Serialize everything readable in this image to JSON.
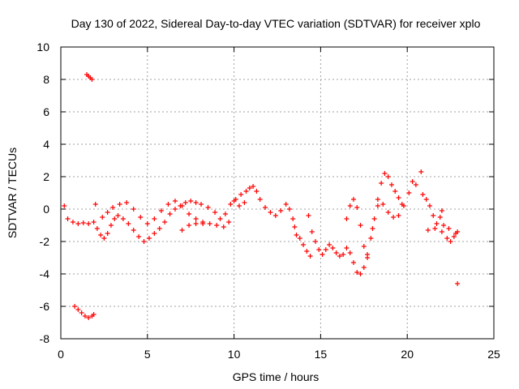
{
  "chart_data": {
    "type": "scatter",
    "title": "Day 130 of 2022, Sidereal Day-to-day VTEC variation (SDTVAR) for receiver xplo",
    "xlabel": "GPS time / hours",
    "ylabel": "SDTVAR / TECUs",
    "xlim": [
      0,
      25
    ],
    "ylim": [
      -8,
      10
    ],
    "xticks": [
      0,
      5,
      10,
      15,
      20,
      25
    ],
    "yticks": [
      -8,
      -6,
      -4,
      -2,
      0,
      2,
      4,
      6,
      8,
      10
    ],
    "grid": true,
    "marker": "plus",
    "series": [
      {
        "name": "SDTVAR",
        "color": "#ff0000",
        "points": [
          [
            0.2,
            0.2
          ],
          [
            0.4,
            -0.6
          ],
          [
            0.7,
            -0.8
          ],
          [
            1.0,
            -0.9
          ],
          [
            1.3,
            -0.85
          ],
          [
            1.6,
            -0.9
          ],
          [
            1.9,
            -0.8
          ],
          [
            1.5,
            8.3
          ],
          [
            1.6,
            8.2
          ],
          [
            1.7,
            8.1
          ],
          [
            1.8,
            8.0
          ],
          [
            0.8,
            -6.0
          ],
          [
            1.0,
            -6.2
          ],
          [
            1.2,
            -6.4
          ],
          [
            1.4,
            -6.6
          ],
          [
            1.6,
            -6.7
          ],
          [
            1.8,
            -6.6
          ],
          [
            1.9,
            -6.5
          ],
          [
            2.0,
            0.3
          ],
          [
            2.1,
            -1.2
          ],
          [
            2.3,
            -1.6
          ],
          [
            2.5,
            -1.8
          ],
          [
            2.7,
            -1.5
          ],
          [
            2.9,
            -1.0
          ],
          [
            3.1,
            -0.6
          ],
          [
            3.3,
            -0.4
          ],
          [
            3.6,
            -0.6
          ],
          [
            3.9,
            -0.9
          ],
          [
            4.2,
            -1.3
          ],
          [
            4.5,
            -1.7
          ],
          [
            4.8,
            -2.0
          ],
          [
            5.1,
            -1.8
          ],
          [
            5.4,
            -1.5
          ],
          [
            5.7,
            -1.2
          ],
          [
            6.0,
            -0.8
          ],
          [
            6.3,
            -0.3
          ],
          [
            6.6,
            0.0
          ],
          [
            6.9,
            0.2
          ],
          [
            7.2,
            0.4
          ],
          [
            7.5,
            0.5
          ],
          [
            7.8,
            0.4
          ],
          [
            8.1,
            0.3
          ],
          [
            2.4,
            -0.5
          ],
          [
            2.7,
            -0.2
          ],
          [
            3.0,
            0.1
          ],
          [
            3.4,
            0.3
          ],
          [
            3.8,
            0.4
          ],
          [
            4.2,
            0.0
          ],
          [
            4.6,
            -0.5
          ],
          [
            5.0,
            -0.9
          ],
          [
            5.4,
            -0.6
          ],
          [
            5.8,
            -0.1
          ],
          [
            6.2,
            0.3
          ],
          [
            6.6,
            0.5
          ],
          [
            7.0,
            0.2
          ],
          [
            7.4,
            -0.3
          ],
          [
            7.8,
            -0.6
          ],
          [
            8.2,
            -0.9
          ],
          [
            7.0,
            -1.3
          ],
          [
            7.4,
            -1.0
          ],
          [
            7.8,
            -0.9
          ],
          [
            8.2,
            -0.8
          ],
          [
            8.6,
            -0.9
          ],
          [
            9.0,
            -1.0
          ],
          [
            9.4,
            -1.1
          ],
          [
            9.7,
            -0.8
          ],
          [
            8.5,
            0.1
          ],
          [
            8.9,
            -0.2
          ],
          [
            9.2,
            -0.6
          ],
          [
            9.5,
            -0.3
          ],
          [
            9.8,
            0.3
          ],
          [
            10.1,
            0.6
          ],
          [
            10.4,
            0.9
          ],
          [
            10.7,
            1.1
          ],
          [
            10.0,
            0.5
          ],
          [
            10.3,
            0.2
          ],
          [
            10.6,
            0.4
          ],
          [
            10.9,
            1.3
          ],
          [
            11.1,
            1.4
          ],
          [
            11.3,
            1.1
          ],
          [
            11.5,
            0.6
          ],
          [
            11.8,
            0.1
          ],
          [
            12.1,
            -0.2
          ],
          [
            12.4,
            -0.4
          ],
          [
            12.7,
            -0.1
          ],
          [
            13.0,
            0.3
          ],
          [
            13.2,
            0.0
          ],
          [
            13.4,
            -0.6
          ],
          [
            13.5,
            -1.1
          ],
          [
            13.6,
            -1.6
          ],
          [
            13.8,
            -1.8
          ],
          [
            14.0,
            -2.2
          ],
          [
            14.2,
            -2.6
          ],
          [
            14.4,
            -2.9
          ],
          [
            14.3,
            -0.4
          ],
          [
            14.5,
            -1.4
          ],
          [
            14.7,
            -2.0
          ],
          [
            14.9,
            -2.5
          ],
          [
            15.1,
            -2.8
          ],
          [
            15.3,
            -2.5
          ],
          [
            15.5,
            -2.2
          ],
          [
            15.7,
            -2.4
          ],
          [
            15.9,
            -2.7
          ],
          [
            16.1,
            -2.9
          ],
          [
            16.3,
            -2.8
          ],
          [
            16.5,
            -2.4
          ],
          [
            16.7,
            -2.7
          ],
          [
            16.9,
            -3.3
          ],
          [
            17.1,
            -3.9
          ],
          [
            17.3,
            -4.0
          ],
          [
            17.5,
            -3.6
          ],
          [
            17.7,
            -2.8
          ],
          [
            17.9,
            -1.8
          ],
          [
            18.1,
            -0.6
          ],
          [
            18.3,
            0.6
          ],
          [
            18.5,
            1.6
          ],
          [
            18.7,
            2.2
          ],
          [
            18.9,
            2.0
          ],
          [
            19.1,
            1.5
          ],
          [
            19.3,
            1.1
          ],
          [
            19.5,
            0.7
          ],
          [
            19.7,
            0.3
          ],
          [
            16.5,
            -0.6
          ],
          [
            16.7,
            0.2
          ],
          [
            16.9,
            0.6
          ],
          [
            17.1,
            0.1
          ],
          [
            17.3,
            -1.0
          ],
          [
            17.5,
            -2.3
          ],
          [
            17.7,
            -3.0
          ],
          [
            18.0,
            -1.2
          ],
          [
            18.3,
            0.2
          ],
          [
            18.6,
            0.3
          ],
          [
            18.9,
            -0.2
          ],
          [
            19.2,
            -0.5
          ],
          [
            19.5,
            -0.4
          ],
          [
            19.8,
            0.2
          ],
          [
            20.1,
            1.0
          ],
          [
            20.3,
            1.7
          ],
          [
            20.5,
            1.5
          ],
          [
            20.8,
            2.3
          ],
          [
            20.9,
            0.9
          ],
          [
            21.1,
            0.6
          ],
          [
            21.3,
            0.2
          ],
          [
            21.5,
            -0.4
          ],
          [
            21.7,
            -0.9
          ],
          [
            21.9,
            -0.5
          ],
          [
            22.0,
            -0.1
          ],
          [
            22.1,
            -1.0
          ],
          [
            22.3,
            -1.8
          ],
          [
            22.5,
            -2.0
          ],
          [
            22.7,
            -1.7
          ],
          [
            22.9,
            -1.4
          ],
          [
            21.2,
            -1.3
          ],
          [
            21.6,
            -1.2
          ],
          [
            22.0,
            -1.4
          ],
          [
            22.4,
            -1.2
          ],
          [
            22.8,
            -1.5
          ],
          [
            22.9,
            -4.6
          ]
        ]
      }
    ]
  }
}
